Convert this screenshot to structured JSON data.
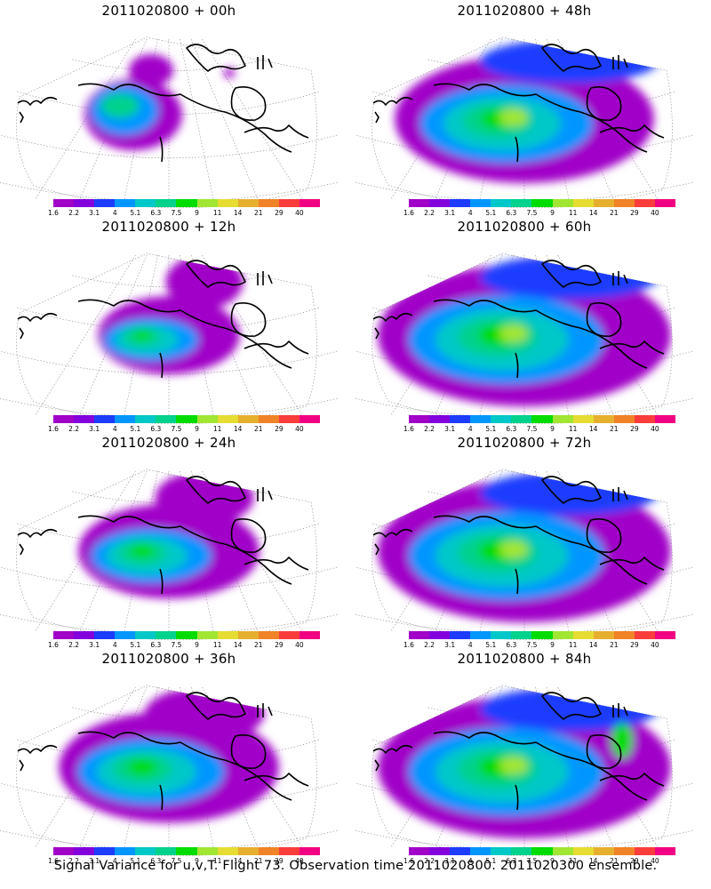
{
  "figure": {
    "caption": "Signal Variance for u,v,T. Flight 73. Observation time 2011020800. 2011020300 ensemble."
  },
  "panels": [
    {
      "title": "2011020800 + 00h",
      "lead_hours": 0
    },
    {
      "title": "2011020800 + 48h",
      "lead_hours": 48
    },
    {
      "title": "2011020800 + 12h",
      "lead_hours": 12
    },
    {
      "title": "2011020800 + 60h",
      "lead_hours": 60
    },
    {
      "title": "2011020800 + 24h",
      "lead_hours": 24
    },
    {
      "title": "2011020800 + 72h",
      "lead_hours": 72
    },
    {
      "title": "2011020800 + 36h",
      "lead_hours": 36
    },
    {
      "title": "2011020800 + 84h",
      "lead_hours": 84
    }
  ],
  "colorbar": {
    "labels": [
      "1.6",
      "2.2",
      "3.1",
      "4",
      "5.1",
      "6.3",
      "7.5",
      "9",
      "11",
      "14",
      "21",
      "29",
      "40"
    ],
    "colors": [
      "#a000c8",
      "#8200dc",
      "#1e3cff",
      "#0096ff",
      "#00c8c8",
      "#00d28c",
      "#00dc00",
      "#a0e632",
      "#e6dc32",
      "#e6af2d",
      "#f08228",
      "#fa3c3c",
      "#f00082"
    ]
  }
}
